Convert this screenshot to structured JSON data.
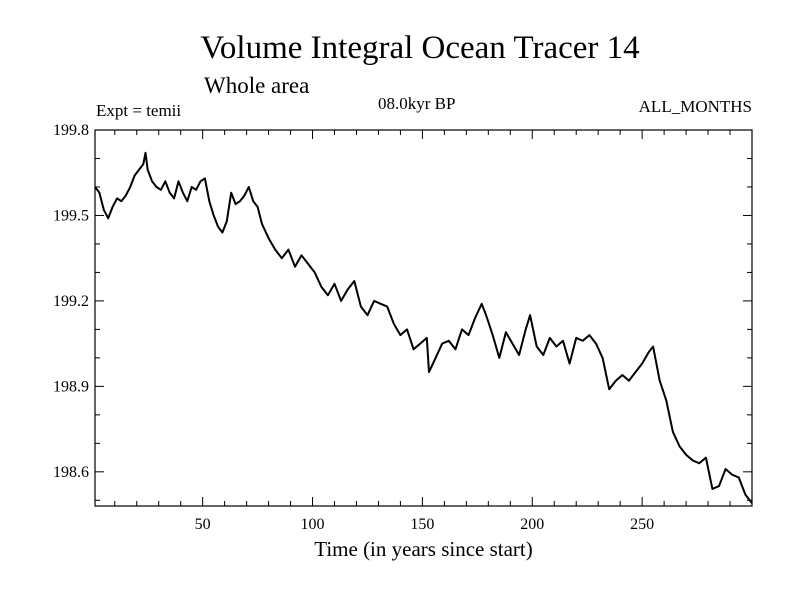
{
  "chart_data": {
    "type": "line",
    "title": "Volume Integral Ocean Tracer 14",
    "subtitle": "Whole area",
    "annotations": {
      "left": "Expt = temii",
      "center": "08.0kyr BP",
      "right": "ALL_MONTHS"
    },
    "xlabel": "Time (in years since start)",
    "ylabel": "",
    "xlim": [
      1,
      300
    ],
    "ylim": [
      198.48,
      199.8
    ],
    "x_ticks": [
      50,
      100,
      150,
      200,
      250
    ],
    "y_ticks": [
      198.6,
      198.9,
      199.2,
      199.5,
      199.8
    ],
    "x_tick_labels": [
      "50",
      "100",
      "150",
      "200",
      "250"
    ],
    "y_tick_labels": [
      "198.6",
      "198.9",
      "199.2",
      "199.5",
      "199.8"
    ],
    "grid": false,
    "series": [
      {
        "x": [
          1,
          3,
          5,
          7,
          9,
          11,
          13,
          15,
          17,
          19,
          21,
          23,
          24,
          25,
          27,
          29,
          31,
          33,
          35,
          37,
          39,
          41,
          43,
          45,
          47,
          49,
          51,
          53,
          55,
          57,
          59,
          61,
          63,
          65,
          67,
          69,
          71,
          73,
          75,
          77,
          80,
          83,
          86,
          89,
          92,
          95,
          98,
          101,
          104,
          107,
          110,
          113,
          116,
          119,
          122,
          125,
          128,
          131,
          134,
          137,
          140,
          143,
          146,
          149,
          152,
          153,
          156,
          159,
          162,
          165,
          168,
          171,
          174,
          177,
          179,
          182,
          185,
          188,
          191,
          194,
          197,
          199,
          202,
          205,
          208,
          211,
          214,
          217,
          220,
          223,
          226,
          229,
          232,
          235,
          238,
          241,
          244,
          247,
          250,
          253,
          255,
          258,
          261,
          264,
          267,
          270,
          273,
          276,
          279,
          282,
          285,
          288,
          291,
          294,
          297,
          300
        ],
        "y": [
          199.6,
          199.58,
          199.52,
          199.49,
          199.53,
          199.56,
          199.55,
          199.57,
          199.6,
          199.64,
          199.66,
          199.68,
          199.72,
          199.66,
          199.62,
          199.6,
          199.59,
          199.62,
          199.58,
          199.56,
          199.62,
          199.58,
          199.55,
          199.6,
          199.59,
          199.62,
          199.63,
          199.55,
          199.5,
          199.46,
          199.44,
          199.48,
          199.58,
          199.54,
          199.55,
          199.57,
          199.6,
          199.55,
          199.53,
          199.47,
          199.42,
          199.38,
          199.35,
          199.38,
          199.32,
          199.36,
          199.33,
          199.3,
          199.25,
          199.22,
          199.26,
          199.2,
          199.24,
          199.27,
          199.18,
          199.15,
          199.2,
          199.19,
          199.18,
          199.12,
          199.08,
          199.1,
          199.03,
          199.05,
          199.07,
          198.95,
          199.0,
          199.05,
          199.06,
          199.03,
          199.1,
          199.08,
          199.14,
          199.19,
          199.15,
          199.08,
          199.0,
          199.09,
          199.05,
          199.01,
          199.1,
          199.15,
          199.04,
          199.01,
          199.07,
          199.04,
          199.06,
          198.98,
          199.07,
          199.06,
          199.08,
          199.05,
          199.0,
          198.89,
          198.92,
          198.94,
          198.92,
          198.95,
          198.98,
          199.02,
          199.04,
          198.92,
          198.85,
          198.74,
          198.69,
          198.66,
          198.64,
          198.63,
          198.65,
          198.54,
          198.55,
          198.61,
          198.59,
          198.58,
          198.52,
          198.49
        ]
      }
    ]
  }
}
